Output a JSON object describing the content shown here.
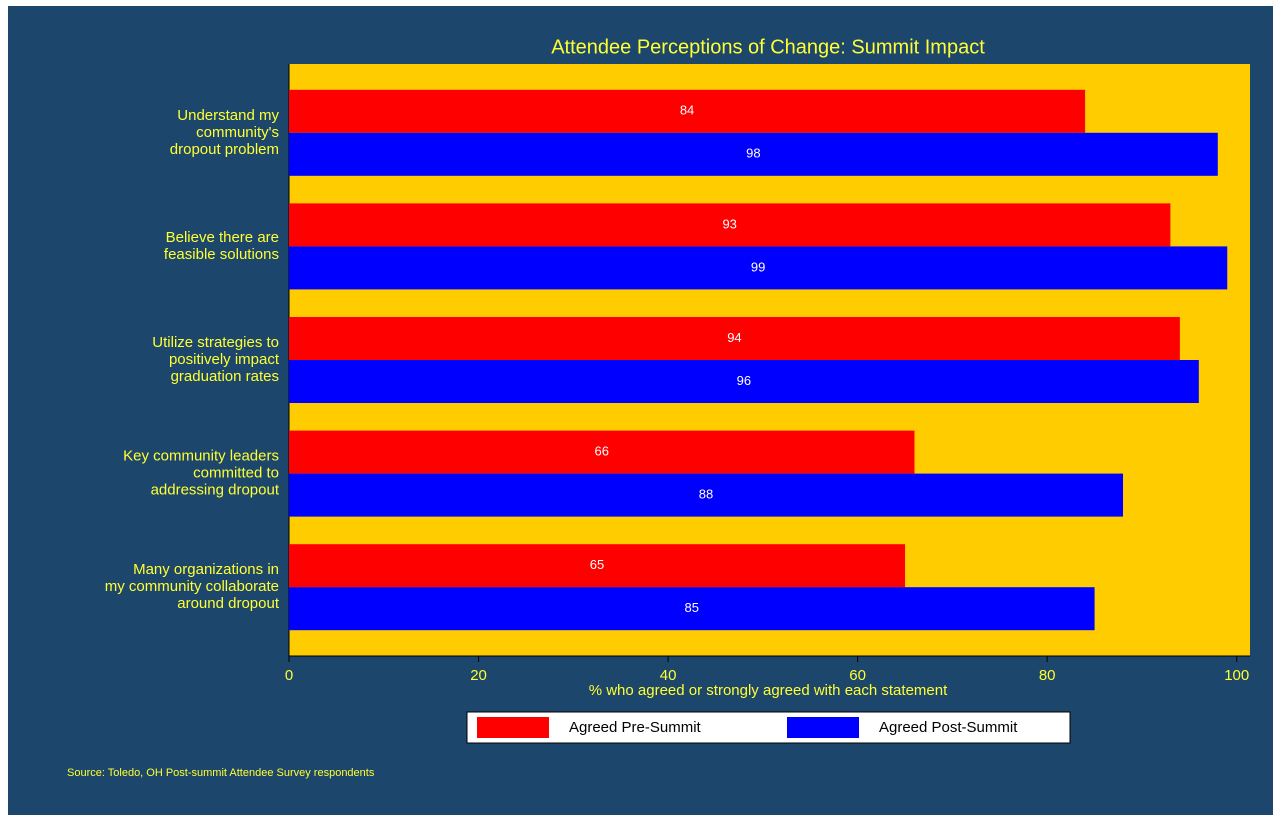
{
  "chart_data": {
    "type": "barh",
    "title": "Attendee Perceptions of Change: Summit Impact",
    "xlabel": "% who agreed or strongly agreed with each statement",
    "categories": [
      "Understand my\ncommunity's\ndropout problem",
      "Believe there are\nfeasible solutions",
      "Utilize strategies to\npositively impact\ngraduation rates",
      "Key community leaders\ncommitted to\naddressing dropout",
      "Many organizations in\nmy community collaborate\naround dropout"
    ],
    "series": [
      {
        "name": "Agreed Pre-Summit",
        "color": "#ff0000",
        "values": [
          84,
          93,
          94,
          66,
          65
        ]
      },
      {
        "name": "Agreed Post-Summit",
        "color": "#0000ff",
        "values": [
          98,
          99,
          96,
          88,
          85
        ]
      }
    ],
    "xlim": [
      0,
      101.4
    ],
    "xticks": [
      0,
      20,
      40,
      60,
      80,
      100
    ],
    "legend": "bottom",
    "note": "Source: Toledo, OH Post-summit Attendee Survey respondents"
  }
}
